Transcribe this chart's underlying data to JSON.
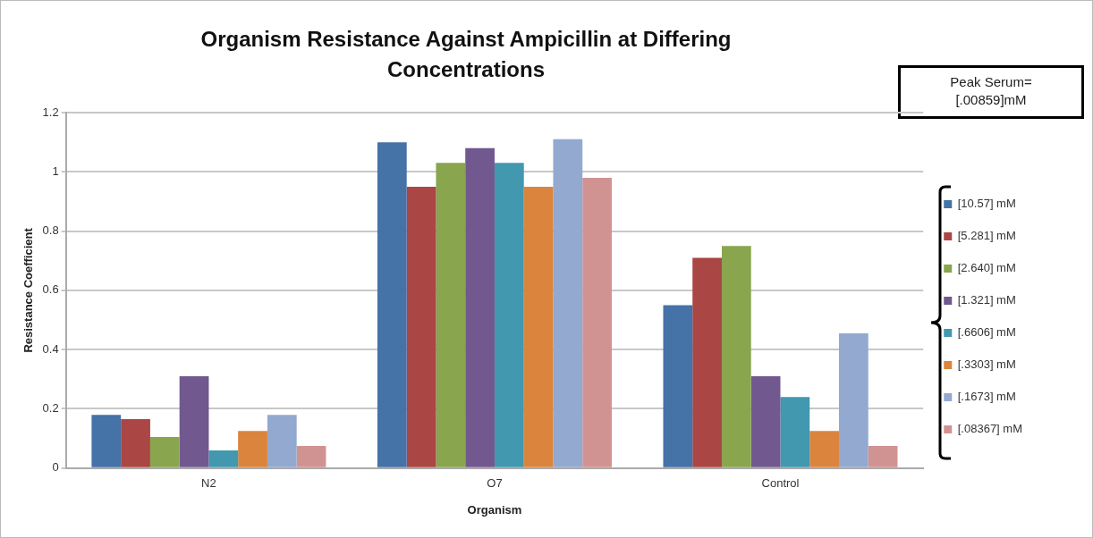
{
  "chart_data": {
    "type": "bar",
    "title": "Organism Resistance Against Ampicillin at Differing Concentrations",
    "xlabel": "Organism",
    "ylabel": "Resistance Coefficient",
    "categories": [
      "N2",
      "O7",
      "Control"
    ],
    "series": [
      {
        "name": "[10.57] mM",
        "color": "#4572a7",
        "values": [
          0.18,
          1.1,
          0.55
        ]
      },
      {
        "name": "[5.281] mM",
        "color": "#aa4643",
        "values": [
          0.165,
          0.95,
          0.71
        ]
      },
      {
        "name": "[2.640] mM",
        "color": "#89a54e",
        "values": [
          0.105,
          1.03,
          0.75
        ]
      },
      {
        "name": "[1.321] mM",
        "color": "#71588f",
        "values": [
          0.31,
          1.08,
          0.31
        ]
      },
      {
        "name": "[.6606] mM",
        "color": "#4198af",
        "values": [
          0.06,
          1.03,
          0.24
        ]
      },
      {
        "name": "[.3303] mM",
        "color": "#db843d",
        "values": [
          0.125,
          0.95,
          0.125
        ]
      },
      {
        "name": "[.1673] mM",
        "color": "#93a9cf",
        "values": [
          0.18,
          1.11,
          0.455
        ]
      },
      {
        "name": "[.08367] mM",
        "color": "#d19392",
        "values": [
          0.075,
          0.98,
          0.075
        ]
      }
    ],
    "ylim": [
      0,
      1.2
    ],
    "yticks": [
      0,
      0.2,
      0.4,
      0.6,
      0.8,
      1,
      1.2
    ],
    "grid": "y",
    "legend": "right",
    "annotations": [
      "Peak Serum= [.00859]mM"
    ]
  }
}
